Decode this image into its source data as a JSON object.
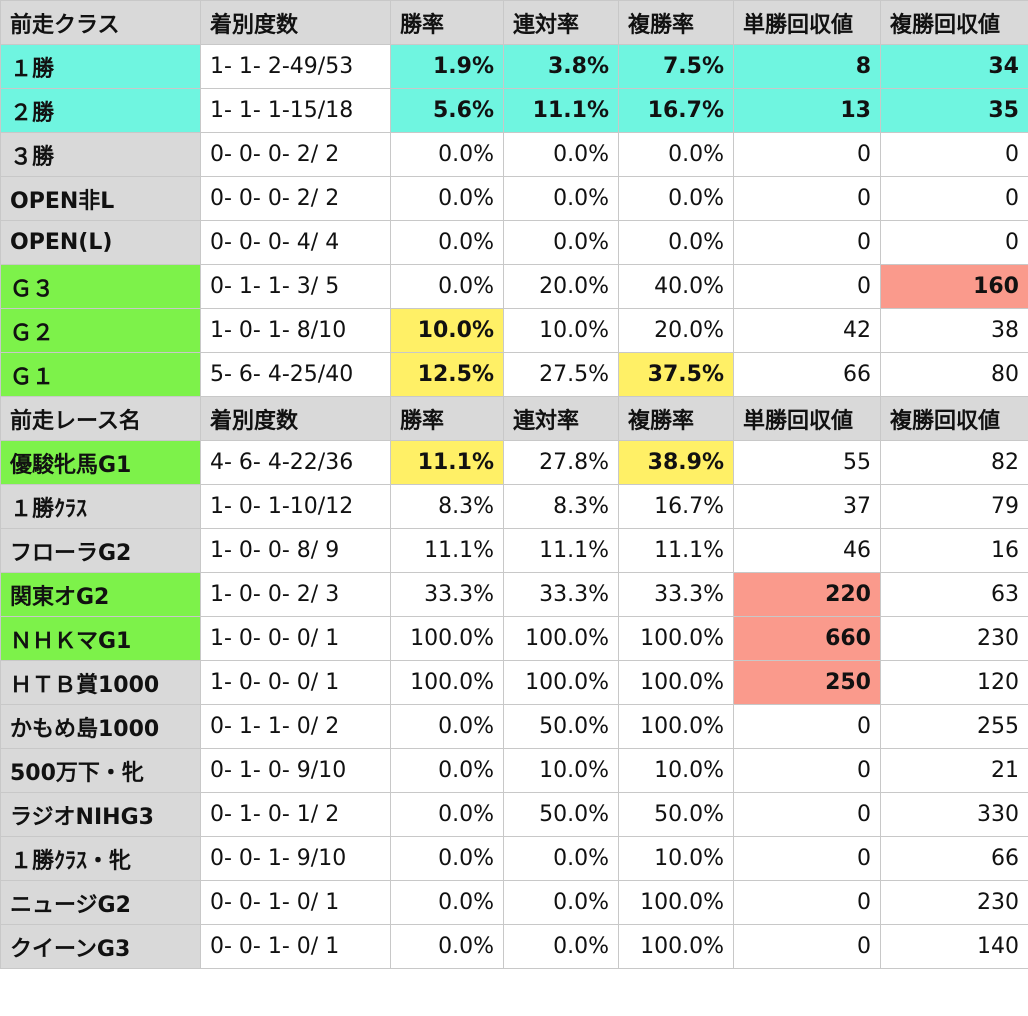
{
  "colors": {
    "header_bg": "#d9d9d9",
    "cyan": "#6ff5e0",
    "green": "#7df24a",
    "yellow": "#fff066",
    "red": "#fa9a8c"
  },
  "class_section": {
    "headers": [
      "前走クラス",
      "着別度数",
      "勝率",
      "連対率",
      "複勝率",
      "単勝回収値",
      "複勝回収値"
    ],
    "rows": [
      {
        "name": "１勝",
        "record": "1- 1- 2-49/53",
        "win": "1.9%",
        "top2": "3.8%",
        "top3": "7.5%",
        "win_return": "8",
        "place_return": "34"
      },
      {
        "name": "２勝",
        "record": "1- 1- 1-15/18",
        "win": "5.6%",
        "top2": "11.1%",
        "top3": "16.7%",
        "win_return": "13",
        "place_return": "35"
      },
      {
        "name": "３勝",
        "record": "0- 0- 0- 2/ 2",
        "win": "0.0%",
        "top2": "0.0%",
        "top3": "0.0%",
        "win_return": "0",
        "place_return": "0"
      },
      {
        "name": "OPEN非L",
        "record": "0- 0- 0- 2/ 2",
        "win": "0.0%",
        "top2": "0.0%",
        "top3": "0.0%",
        "win_return": "0",
        "place_return": "0"
      },
      {
        "name": "OPEN(L)",
        "record": "0- 0- 0- 4/ 4",
        "win": "0.0%",
        "top2": "0.0%",
        "top3": "0.0%",
        "win_return": "0",
        "place_return": "0"
      },
      {
        "name": "Ｇ３",
        "record": "0- 1- 1- 3/ 5",
        "win": "0.0%",
        "top2": "20.0%",
        "top3": "40.0%",
        "win_return": "0",
        "place_return": "160"
      },
      {
        "name": "Ｇ２",
        "record": "1- 0- 1- 8/10",
        "win": "10.0%",
        "top2": "10.0%",
        "top3": "20.0%",
        "win_return": "42",
        "place_return": "38"
      },
      {
        "name": "Ｇ１",
        "record": "5- 6- 4-25/40",
        "win": "12.5%",
        "top2": "27.5%",
        "top3": "37.5%",
        "win_return": "66",
        "place_return": "80"
      }
    ]
  },
  "race_section": {
    "headers": [
      "前走レース名",
      "着別度数",
      "勝率",
      "連対率",
      "複勝率",
      "単勝回収値",
      "複勝回収値"
    ],
    "rows": [
      {
        "name": "優駿牝馬G1",
        "record": "4- 6- 4-22/36",
        "win": "11.1%",
        "top2": "27.8%",
        "top3": "38.9%",
        "win_return": "55",
        "place_return": "82"
      },
      {
        "name": "１勝ｸﾗｽ",
        "record": "1- 0- 1-10/12",
        "win": "8.3%",
        "top2": "8.3%",
        "top3": "16.7%",
        "win_return": "37",
        "place_return": "79"
      },
      {
        "name": "フローラG2",
        "record": "1- 0- 0- 8/ 9",
        "win": "11.1%",
        "top2": "11.1%",
        "top3": "11.1%",
        "win_return": "46",
        "place_return": "16"
      },
      {
        "name": "関東オG2",
        "record": "1- 0- 0- 2/ 3",
        "win": "33.3%",
        "top2": "33.3%",
        "top3": "33.3%",
        "win_return": "220",
        "place_return": "63"
      },
      {
        "name": "ＮＨＫマG1",
        "record": "1- 0- 0- 0/ 1",
        "win": "100.0%",
        "top2": "100.0%",
        "top3": "100.0%",
        "win_return": "660",
        "place_return": "230"
      },
      {
        "name": "ＨＴＢ賞1000",
        "record": "1- 0- 0- 0/ 1",
        "win": "100.0%",
        "top2": "100.0%",
        "top3": "100.0%",
        "win_return": "250",
        "place_return": "120"
      },
      {
        "name": "かもめ島1000",
        "record": "0- 1- 1- 0/ 2",
        "win": "0.0%",
        "top2": "50.0%",
        "top3": "100.0%",
        "win_return": "0",
        "place_return": "255"
      },
      {
        "name": "500万下・牝",
        "record": "0- 1- 0- 9/10",
        "win": "0.0%",
        "top2": "10.0%",
        "top3": "10.0%",
        "win_return": "0",
        "place_return": "21"
      },
      {
        "name": "ラジオNIHG3",
        "record": "0- 1- 0- 1/ 2",
        "win": "0.0%",
        "top2": "50.0%",
        "top3": "50.0%",
        "win_return": "0",
        "place_return": "330"
      },
      {
        "name": "１勝ｸﾗｽ・牝",
        "record": "0- 0- 1- 9/10",
        "win": "0.0%",
        "top2": "0.0%",
        "top3": "10.0%",
        "win_return": "0",
        "place_return": "66"
      },
      {
        "name": "ニュージG2",
        "record": "0- 0- 1- 0/ 1",
        "win": "0.0%",
        "top2": "0.0%",
        "top3": "100.0%",
        "win_return": "0",
        "place_return": "230"
      },
      {
        "name": "クイーンG3",
        "record": "0- 0- 1- 0/ 1",
        "win": "0.0%",
        "top2": "0.0%",
        "top3": "100.0%",
        "win_return": "0",
        "place_return": "140"
      }
    ]
  }
}
